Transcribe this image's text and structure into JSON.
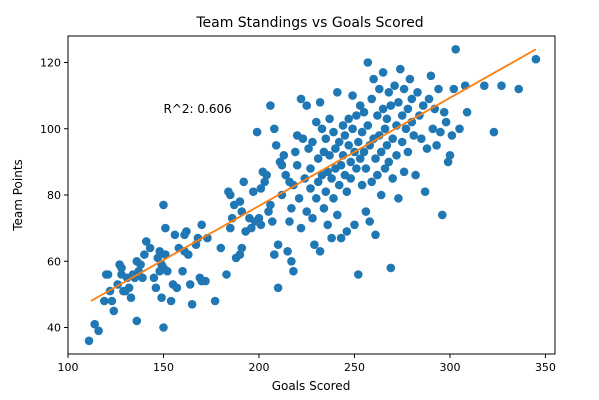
{
  "chart_data": {
    "type": "scatter",
    "title": "Team Standings vs Goals Scored",
    "xlabel": "Goals Scored",
    "ylabel": "Team Points",
    "xlim": [
      100,
      355
    ],
    "ylim": [
      32,
      128
    ],
    "xticks": [
      100,
      150,
      200,
      250,
      300,
      350
    ],
    "yticks": [
      40,
      60,
      80,
      100,
      120
    ],
    "grid": false,
    "annotation": "R^2: 0.606",
    "annotation_anchor": [
      150,
      106
    ],
    "colors": {
      "points": "#1f77b4",
      "fit_line": "#ff7f0e"
    },
    "fit_line": {
      "x": [
        112,
        345
      ],
      "y": [
        48,
        124
      ]
    },
    "points": [
      [
        111,
        36
      ],
      [
        114,
        41
      ],
      [
        116,
        39
      ],
      [
        119,
        48
      ],
      [
        120,
        56
      ],
      [
        121,
        56
      ],
      [
        122,
        51
      ],
      [
        123,
        48
      ],
      [
        124,
        45
      ],
      [
        126,
        53
      ],
      [
        127,
        59
      ],
      [
        128,
        56
      ],
      [
        128,
        58
      ],
      [
        129,
        51
      ],
      [
        130,
        51
      ],
      [
        131,
        55
      ],
      [
        132,
        52
      ],
      [
        133,
        49
      ],
      [
        134,
        56
      ],
      [
        135,
        55
      ],
      [
        136,
        60
      ],
      [
        136,
        42
      ],
      [
        137,
        57
      ],
      [
        138,
        59
      ],
      [
        139,
        55
      ],
      [
        140,
        62
      ],
      [
        141,
        66
      ],
      [
        143,
        64
      ],
      [
        145,
        55
      ],
      [
        146,
        52
      ],
      [
        147,
        61
      ],
      [
        148,
        63
      ],
      [
        148,
        57
      ],
      [
        149,
        59
      ],
      [
        149,
        49
      ],
      [
        150,
        58
      ],
      [
        150,
        40
      ],
      [
        150,
        77
      ],
      [
        151,
        70
      ],
      [
        151,
        62
      ],
      [
        152,
        57
      ],
      [
        154,
        48
      ],
      [
        155,
        53
      ],
      [
        156,
        68
      ],
      [
        157,
        52
      ],
      [
        158,
        64
      ],
      [
        160,
        57
      ],
      [
        161,
        63
      ],
      [
        161,
        68
      ],
      [
        162,
        69
      ],
      [
        163,
        62
      ],
      [
        164,
        53
      ],
      [
        165,
        47
      ],
      [
        167,
        65
      ],
      [
        168,
        67
      ],
      [
        169,
        55
      ],
      [
        170,
        71
      ],
      [
        170,
        54
      ],
      [
        172,
        54
      ],
      [
        173,
        67
      ],
      [
        177,
        48
      ],
      [
        180,
        64
      ],
      [
        183,
        56
      ],
      [
        184,
        81
      ],
      [
        185,
        80
      ],
      [
        185,
        70
      ],
      [
        186,
        73
      ],
      [
        187,
        77
      ],
      [
        188,
        61
      ],
      [
        190,
        78
      ],
      [
        190,
        62
      ],
      [
        191,
        64
      ],
      [
        191,
        75
      ],
      [
        192,
        84
      ],
      [
        193,
        69
      ],
      [
        195,
        73
      ],
      [
        196,
        70
      ],
      [
        197,
        81
      ],
      [
        198,
        72
      ],
      [
        199,
        99
      ],
      [
        200,
        73
      ],
      [
        201,
        82
      ],
      [
        201,
        71
      ],
      [
        202,
        87
      ],
      [
        203,
        84
      ],
      [
        204,
        86
      ],
      [
        205,
        75
      ],
      [
        206,
        107
      ],
      [
        206,
        77
      ],
      [
        207,
        72
      ],
      [
        208,
        100
      ],
      [
        208,
        62
      ],
      [
        209,
        95
      ],
      [
        210,
        65
      ],
      [
        210,
        52
      ],
      [
        211,
        90
      ],
      [
        212,
        89
      ],
      [
        212,
        80
      ],
      [
        213,
        92
      ],
      [
        214,
        86
      ],
      [
        215,
        63
      ],
      [
        216,
        84
      ],
      [
        216,
        72
      ],
      [
        217,
        76
      ],
      [
        217,
        60
      ],
      [
        218,
        83
      ],
      [
        218,
        57
      ],
      [
        219,
        93
      ],
      [
        220,
        98
      ],
      [
        220,
        89
      ],
      [
        221,
        79
      ],
      [
        222,
        70
      ],
      [
        222,
        109
      ],
      [
        223,
        97
      ],
      [
        224,
        85
      ],
      [
        225,
        75
      ],
      [
        225,
        107
      ],
      [
        226,
        94
      ],
      [
        227,
        82
      ],
      [
        227,
        88
      ],
      [
        228,
        73
      ],
      [
        228,
        96
      ],
      [
        229,
        65
      ],
      [
        230,
        79
      ],
      [
        230,
        102
      ],
      [
        231,
        91
      ],
      [
        231,
        84
      ],
      [
        232,
        63
      ],
      [
        232,
        108
      ],
      [
        233,
        100
      ],
      [
        233,
        86
      ],
      [
        234,
        76
      ],
      [
        234,
        93
      ],
      [
        235,
        97
      ],
      [
        235,
        81
      ],
      [
        236,
        87
      ],
      [
        236,
        71
      ],
      [
        237,
        103
      ],
      [
        237,
        92
      ],
      [
        238,
        85
      ],
      [
        238,
        67
      ],
      [
        239,
        99
      ],
      [
        239,
        79
      ],
      [
        240,
        94
      ],
      [
        240,
        88
      ],
      [
        241,
        74
      ],
      [
        241,
        111
      ],
      [
        242,
        96
      ],
      [
        242,
        83
      ],
      [
        243,
        89
      ],
      [
        243,
        67
      ],
      [
        244,
        101
      ],
      [
        244,
        92
      ],
      [
        245,
        86
      ],
      [
        245,
        98
      ],
      [
        246,
        81
      ],
      [
        246,
        69
      ],
      [
        247,
        103
      ],
      [
        247,
        95
      ],
      [
        248,
        90
      ],
      [
        248,
        85
      ],
      [
        249,
        110
      ],
      [
        249,
        100
      ],
      [
        250,
        93
      ],
      [
        250,
        71
      ],
      [
        251,
        88
      ],
      [
        251,
        104
      ],
      [
        252,
        96
      ],
      [
        252,
        56
      ],
      [
        253,
        91
      ],
      [
        253,
        107
      ],
      [
        254,
        83
      ],
      [
        254,
        99
      ],
      [
        255,
        93
      ],
      [
        255,
        105
      ],
      [
        256,
        88
      ],
      [
        256,
        75
      ],
      [
        257,
        101
      ],
      [
        257,
        120
      ],
      [
        258,
        95
      ],
      [
        258,
        72
      ],
      [
        259,
        84
      ],
      [
        259,
        109
      ],
      [
        260,
        97
      ],
      [
        260,
        115
      ],
      [
        261,
        91
      ],
      [
        261,
        68
      ],
      [
        262,
        104
      ],
      [
        262,
        86
      ],
      [
        263,
        98
      ],
      [
        263,
        112
      ],
      [
        264,
        93
      ],
      [
        264,
        80
      ],
      [
        265,
        106
      ],
      [
        265,
        117
      ],
      [
        266,
        100
      ],
      [
        266,
        88
      ],
      [
        267,
        95
      ],
      [
        267,
        103
      ],
      [
        268,
        111
      ],
      [
        268,
        90
      ],
      [
        269,
        58
      ],
      [
        269,
        107
      ],
      [
        270,
        97
      ],
      [
        270,
        85
      ],
      [
        271,
        113
      ],
      [
        272,
        101
      ],
      [
        272,
        92
      ],
      [
        273,
        79
      ],
      [
        273,
        108
      ],
      [
        274,
        118
      ],
      [
        275,
        96
      ],
      [
        275,
        104
      ],
      [
        276,
        87
      ],
      [
        276,
        112
      ],
      [
        277,
        100
      ],
      [
        278,
        106
      ],
      [
        278,
        93
      ],
      [
        279,
        115
      ],
      [
        280,
        102
      ],
      [
        280,
        109
      ],
      [
        281,
        98
      ],
      [
        282,
        86
      ],
      [
        283,
        111
      ],
      [
        284,
        104
      ],
      [
        285,
        97
      ],
      [
        286,
        107
      ],
      [
        287,
        81
      ],
      [
        288,
        94
      ],
      [
        289,
        109
      ],
      [
        290,
        116
      ],
      [
        291,
        100
      ],
      [
        292,
        106
      ],
      [
        293,
        95
      ],
      [
        294,
        112
      ],
      [
        295,
        99
      ],
      [
        296,
        74
      ],
      [
        297,
        105
      ],
      [
        298,
        102
      ],
      [
        299,
        90
      ],
      [
        300,
        92
      ],
      [
        301,
        98
      ],
      [
        302,
        112
      ],
      [
        303,
        124
      ],
      [
        305,
        100
      ],
      [
        308,
        113
      ],
      [
        309,
        105
      ],
      [
        318,
        113
      ],
      [
        323,
        99
      ],
      [
        327,
        113
      ],
      [
        336,
        112
      ],
      [
        345,
        121
      ]
    ]
  }
}
